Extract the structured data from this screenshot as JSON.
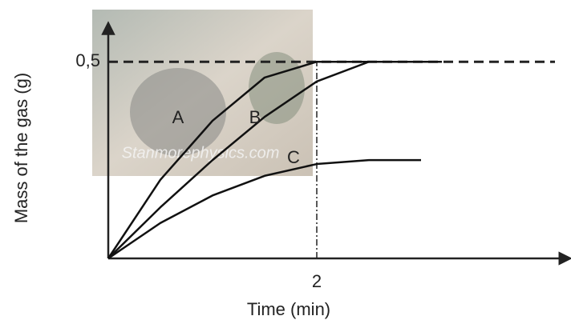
{
  "chart_data": {
    "type": "line",
    "x_label": "Time (min)",
    "y_label": "Mass of the gas (g)",
    "watermark": "Stanmorephysics.com",
    "x": [
      0,
      0.5,
      1,
      1.5,
      2,
      2.5,
      3,
      3.2
    ],
    "series": [
      {
        "name": "A",
        "color": "#111111",
        "values": [
          0,
          0.2,
          0.35,
          0.46,
          0.5,
          0.5,
          0.5,
          0.5
        ]
      },
      {
        "name": "B",
        "color": "#111111",
        "values": [
          0,
          0.13,
          0.25,
          0.36,
          0.45,
          0.5,
          0.5,
          0.5
        ]
      },
      {
        "name": "C",
        "color": "#111111",
        "values": [
          0,
          0.09,
          0.16,
          0.21,
          0.24,
          0.25,
          0.25,
          null
        ]
      }
    ],
    "xlim": [
      0,
      4.4
    ],
    "ylim": [
      0,
      0.59
    ],
    "xticks": [
      2
    ],
    "yticks": [
      {
        "value": 0.5,
        "label": "0,5"
      }
    ]
  }
}
